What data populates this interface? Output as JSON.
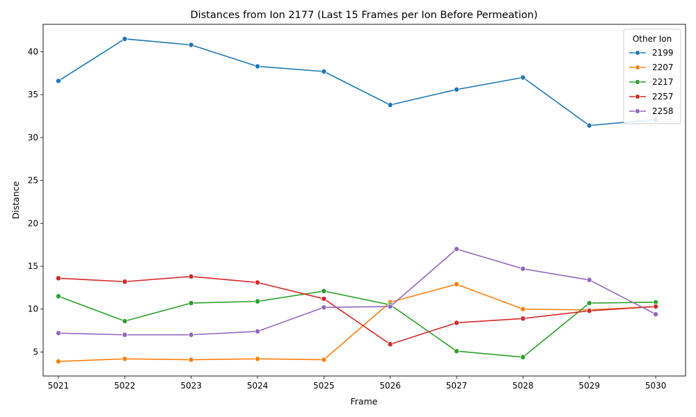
{
  "chart_data": {
    "type": "line",
    "title": "Distances from Ion 2177 (Last 15 Frames per Ion Before Permeation)",
    "xlabel": "Frame",
    "ylabel": "Distance",
    "x": [
      5021,
      5022,
      5023,
      5024,
      5025,
      5026,
      5027,
      5028,
      5029,
      5030
    ],
    "xlim": [
      5020.77,
      5030.45
    ],
    "ylim": [
      2.2,
      43.2
    ],
    "yticks": [
      5,
      10,
      15,
      20,
      25,
      30,
      35,
      40
    ],
    "grid": false,
    "legend": {
      "title": "Other Ion",
      "position": "top-right"
    },
    "series": [
      {
        "name": "2199",
        "color": "#1f77b4",
        "values": [
          36.6,
          41.5,
          40.8,
          38.3,
          37.7,
          33.8,
          35.6,
          37.0,
          31.4,
          32.1
        ]
      },
      {
        "name": "2207",
        "color": "#ff7f0e",
        "values": [
          3.9,
          4.2,
          4.1,
          4.2,
          4.1,
          10.8,
          12.9,
          10.0,
          9.9,
          10.3
        ]
      },
      {
        "name": "2217",
        "color": "#2ca02c",
        "values": [
          11.5,
          8.6,
          10.7,
          10.9,
          12.1,
          10.5,
          5.1,
          4.4,
          10.7,
          10.8
        ]
      },
      {
        "name": "2257",
        "color": "#d62728",
        "values": [
          13.6,
          13.2,
          13.8,
          13.1,
          11.2,
          5.9,
          8.4,
          8.9,
          9.8,
          10.3
        ]
      },
      {
        "name": "2258",
        "color": "#9467bd",
        "values": [
          7.2,
          7.0,
          7.0,
          7.4,
          10.2,
          10.3,
          17.0,
          14.7,
          13.4,
          9.4
        ]
      }
    ]
  }
}
